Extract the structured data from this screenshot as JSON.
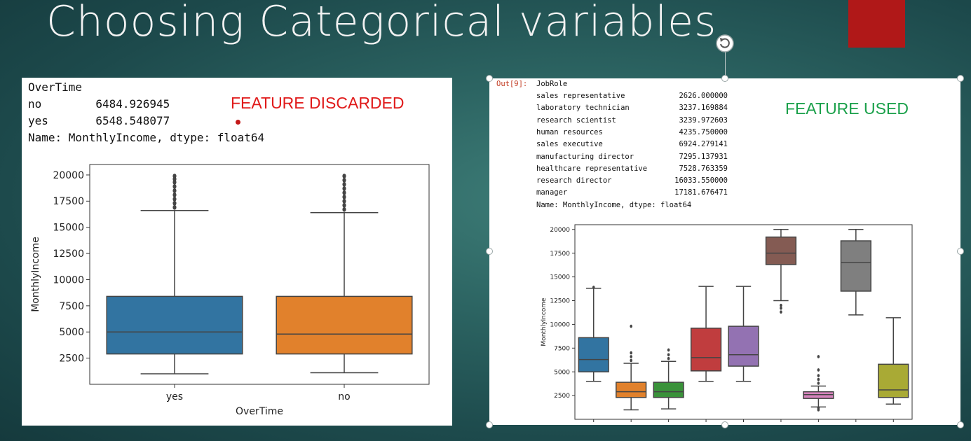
{
  "slide": {
    "title": "Choosing Categorical variables",
    "accent_color": "#b01818"
  },
  "left": {
    "lines": [
      "OverTime",
      "no        6484.926945",
      "yes       6548.548077",
      "Name: MonthlyIncome, dtype: float64"
    ],
    "annotation": "FEATURE DISCARDED",
    "annotation_color": "#e01a1a"
  },
  "right": {
    "out_label": "Out[9]:",
    "header": "JobRole",
    "rows": [
      {
        "role": "sales representative",
        "value": "2626.000000"
      },
      {
        "role": "laboratory technician",
        "value": "3237.169884"
      },
      {
        "role": "research scientist",
        "value": "3239.972603"
      },
      {
        "role": "human resources",
        "value": "4235.750000"
      },
      {
        "role": "sales executive",
        "value": "6924.279141"
      },
      {
        "role": "manufacturing director",
        "value": "7295.137931"
      },
      {
        "role": "healthcare representative",
        "value": "7528.763359"
      },
      {
        "role": "research director",
        "value": "16033.550000"
      },
      {
        "role": "manager",
        "value": "17181.676471"
      }
    ],
    "footer": "Name: MonthlyIncome, dtype: float64",
    "annotation": "FEATURE USED",
    "annotation_color": "#1aa04a"
  },
  "chart_data": [
    {
      "type": "box",
      "xlabel": "OverTime",
      "ylabel": "MonthlyIncome",
      "categories": [
        "yes",
        "no"
      ],
      "ylim": [
        0,
        21000
      ],
      "yticks": [
        2500,
        5000,
        7500,
        10000,
        12500,
        15000,
        17500,
        20000
      ],
      "colors": [
        "#3274a1",
        "#e1812c"
      ],
      "boxes": [
        {
          "min": 1000,
          "q1": 2900,
          "median": 5000,
          "q3": 8400,
          "max": 16600,
          "outliers": [
            16900,
            17300,
            17700,
            18100,
            18500,
            18900,
            19300,
            19600,
            19900
          ]
        },
        {
          "min": 1100,
          "q1": 2900,
          "median": 4800,
          "q3": 8400,
          "max": 16400,
          "outliers": [
            16700,
            17100,
            17500,
            17900,
            18300,
            18700,
            19100,
            19500,
            19900
          ]
        }
      ]
    },
    {
      "type": "box",
      "xlabel": "",
      "ylabel": "MonthlyIncome",
      "categories": [
        "",
        "",
        "",
        "",
        "",
        "",
        "",
        "",
        ""
      ],
      "ylim": [
        0,
        20500
      ],
      "yticks": [
        2500,
        5000,
        7500,
        10000,
        12500,
        15000,
        17500,
        20000
      ],
      "colors": [
        "#3274a1",
        "#e1812c",
        "#3a923a",
        "#c03d3e",
        "#9372b2",
        "#845b53",
        "#d684bd",
        "#7f7f7f",
        "#a9aa35"
      ],
      "boxes": [
        {
          "min": 4000,
          "q1": 5000,
          "median": 6300,
          "q3": 8600,
          "max": 13800,
          "outliers": [
            13900
          ]
        },
        {
          "min": 1000,
          "q1": 2300,
          "median": 2900,
          "q3": 3900,
          "max": 5900,
          "outliers": [
            6200,
            6600,
            7000,
            9800
          ]
        },
        {
          "min": 1100,
          "q1": 2300,
          "median": 2900,
          "q3": 3900,
          "max": 6100,
          "outliers": [
            6400,
            6800,
            7300
          ]
        },
        {
          "min": 4000,
          "q1": 5100,
          "median": 6500,
          "q3": 9600,
          "max": 14000,
          "outliers": []
        },
        {
          "min": 4000,
          "q1": 5600,
          "median": 6800,
          "q3": 9800,
          "max": 14000,
          "outliers": []
        },
        {
          "min": 12500,
          "q1": 16300,
          "median": 17500,
          "q3": 19200,
          "max": 20000,
          "outliers": [
            11300,
            11700,
            12000
          ]
        },
        {
          "min": 1300,
          "q1": 2200,
          "median": 2600,
          "q3": 2900,
          "max": 3500,
          "outliers": [
            1000,
            1200,
            3800,
            4200,
            4600,
            5200,
            6600
          ]
        },
        {
          "min": 11000,
          "q1": 13500,
          "median": 16500,
          "q3": 18800,
          "max": 20000,
          "outliers": []
        },
        {
          "min": 1600,
          "q1": 2300,
          "median": 3100,
          "q3": 5800,
          "max": 10700,
          "outliers": []
        }
      ]
    }
  ]
}
